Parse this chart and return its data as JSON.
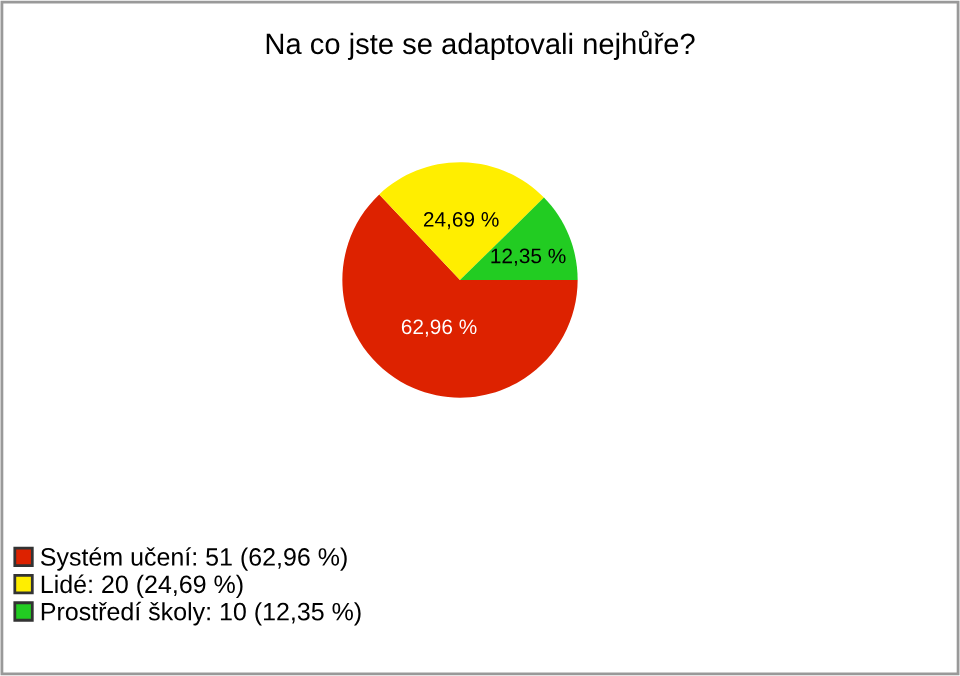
{
  "chart_data": {
    "type": "pie",
    "title": "Na co jste se adaptovali nejhůře?",
    "categories": [
      "Systém učení: 51 (62,96 %)",
      "Lidé: 20 (24,69 %)",
      "Prostředí školy: 10 (12,35 %)"
    ],
    "values": [
      62.96,
      24.69,
      12.35
    ],
    "value_labels": [
      "62,96 %",
      "24,69 %",
      "12,35 %"
    ],
    "colors": [
      "#dd2200",
      "#ffee00",
      "#22cc22"
    ],
    "legend": "bottom left"
  }
}
